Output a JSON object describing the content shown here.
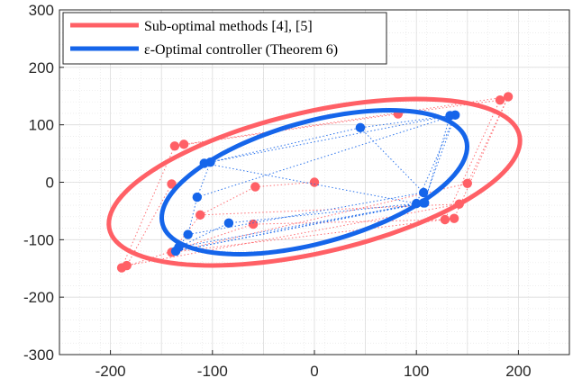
{
  "chart_data": {
    "type": "scatter",
    "xlim": [
      -250,
      250
    ],
    "ylim": [
      -300,
      300
    ],
    "xticks": [
      -200,
      -100,
      0,
      100,
      200
    ],
    "yticks": [
      -300,
      -200,
      -100,
      0,
      100,
      200,
      300
    ],
    "xtick_labels": [
      "-200",
      "-100",
      "0",
      "100",
      "200"
    ],
    "ytick_labels": [
      "-300",
      "-200",
      "-100",
      "0",
      "100",
      "200",
      "300"
    ],
    "grid": true,
    "minor_grid": true,
    "legend_position": "top-left",
    "series": [
      {
        "name": "Sub-optimal methods [4], [5]",
        "color": "#ff6066",
        "ellipse": {
          "center": [
            0,
            0
          ],
          "semi_major": 220,
          "semi_minor": 115,
          "angle_deg": 28
        },
        "points": [
          [
            0,
            0
          ],
          [
            -58,
            -8
          ],
          [
            -137,
            63
          ],
          [
            -128,
            66
          ],
          [
            -140,
            -3
          ],
          [
            -112,
            -57
          ],
          [
            -189,
            -149
          ],
          [
            -184,
            -145
          ],
          [
            -140,
            -122
          ],
          [
            -60,
            -73
          ],
          [
            82,
            119
          ],
          [
            190,
            149
          ],
          [
            182,
            143
          ],
          [
            150,
            -2
          ],
          [
            142,
            -38
          ],
          [
            137,
            -63
          ],
          [
            128,
            -65
          ]
        ],
        "paths": [
          [
            [
              0,
              0
            ],
            [
              -58,
              -8
            ],
            [
              -112,
              -57
            ],
            [
              -140,
              -122
            ]
          ],
          [
            [
              -137,
              63
            ],
            [
              82,
              119
            ],
            [
              182,
              143
            ],
            [
              128,
              -65
            ],
            [
              -60,
              -73
            ],
            [
              -189,
              -149
            ]
          ],
          [
            [
              -128,
              66
            ],
            [
              190,
              149
            ],
            [
              150,
              -2
            ],
            [
              -140,
              -122
            ]
          ],
          [
            [
              -140,
              -3
            ],
            [
              -184,
              -145
            ],
            [
              142,
              -38
            ],
            [
              -112,
              -57
            ]
          ],
          [
            [
              -137,
              63
            ],
            [
              -189,
              -149
            ]
          ],
          [
            [
              190,
              149
            ],
            [
              137,
              -63
            ],
            [
              -140,
              -122
            ]
          ]
        ]
      },
      {
        "name": "ε-Optimal controller (Theorem 6)",
        "color": "#1565ea",
        "ellipse": {
          "center": [
            0,
            0
          ],
          "semi_major": 170,
          "semi_minor": 96,
          "angle_deg": 35
        },
        "points": [
          [
            45,
            95
          ],
          [
            138,
            117
          ],
          [
            133,
            116
          ],
          [
            -102,
            35
          ],
          [
            -108,
            33
          ],
          [
            -115,
            -26
          ],
          [
            -84,
            -71
          ],
          [
            -124,
            -91
          ],
          [
            -133,
            -113
          ],
          [
            -136,
            -120
          ],
          [
            107,
            -18
          ],
          [
            107,
            -36
          ],
          [
            108,
            -36
          ],
          [
            100,
            -37
          ]
        ],
        "paths": [
          [
            [
              -102,
              35
            ],
            [
              45,
              95
            ],
            [
              138,
              117
            ],
            [
              107,
              -36
            ],
            [
              -133,
              -113
            ]
          ],
          [
            [
              -108,
              33
            ],
            [
              133,
              116
            ],
            [
              108,
              -36
            ],
            [
              -136,
              -120
            ]
          ],
          [
            [
              -102,
              35
            ],
            [
              -115,
              -26
            ],
            [
              -124,
              -91
            ],
            [
              -136,
              -120
            ]
          ],
          [
            [
              -108,
              33
            ],
            [
              100,
              -37
            ],
            [
              -84,
              -71
            ],
            [
              -133,
              -113
            ]
          ],
          [
            [
              45,
              95
            ],
            [
              107,
              -18
            ],
            [
              -124,
              -91
            ]
          ],
          [
            [
              -115,
              -26
            ],
            [
              138,
              117
            ],
            [
              100,
              -37
            ],
            [
              -136,
              -120
            ]
          ]
        ]
      }
    ]
  }
}
